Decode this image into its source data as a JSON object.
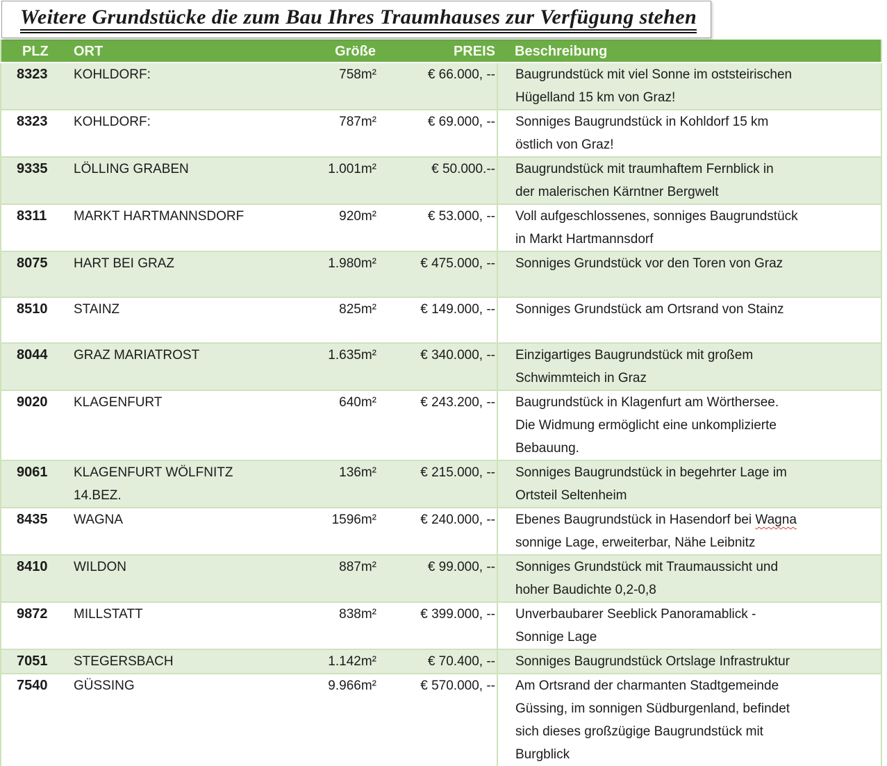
{
  "title": "Weitere Grundstücke die zum Bau Ihres Traumhauses zur Verfügung stehen",
  "table": {
    "columns": [
      "PLZ",
      "ORT",
      "Größe",
      "PREIS",
      "Beschreibung"
    ],
    "rows": [
      {
        "plz": "8323",
        "ort": "KOHLDORF:",
        "groesse": "758m²",
        "preis": "€ 66.000, --",
        "beschreibung": "Baugrundstück mit viel Sonne im oststeirischen\nHügelland 15 km von Graz!"
      },
      {
        "plz": "8323",
        "ort": "KOHLDORF:",
        "groesse": "787m²",
        "preis": "€ 69.000, --",
        "beschreibung": "Sonniges Baugrundstück in Kohldorf 15 km\nöstlich von Graz!"
      },
      {
        "plz": "9335",
        "ort": "LÖLLING GRABEN",
        "groesse": "1.001m²",
        "preis": "€ 50.000.--",
        "beschreibung": "Baugrundstück mit traumhaftem Fernblick in\nder malerischen Kärntner Bergwelt"
      },
      {
        "plz": "8311",
        "ort": "MARKT HARTMANNSDORF",
        "groesse": "920m²",
        "preis": "€ 53.000, --",
        "beschreibung": "Voll aufgeschlossenes, sonniges Baugrundstück\nin Markt Hartmannsdorf"
      },
      {
        "plz": "8075",
        "ort": "HART BEI GRAZ",
        "groesse": "1.980m²",
        "preis": "€ 475.000, --",
        "beschreibung": "Sonniges Grundstück vor den Toren von Graz"
      },
      {
        "plz": "8510",
        "ort": "STAINZ",
        "groesse": "825m²",
        "preis": "€ 149.000, --",
        "beschreibung": "Sonniges Grundstück am Ortsrand von Stainz"
      },
      {
        "plz": "8044",
        "ort": "GRAZ MARIATROST",
        "groesse": "1.635m²",
        "preis": "€ 340.000, --",
        "beschreibung": "Einzigartiges Baugrundstück mit großem\nSchwimmteich in Graz"
      },
      {
        "plz": "9020",
        "ort": "KLAGENFURT",
        "groesse": "640m²",
        "preis": "€ 243.200, --",
        "beschreibung": "Baugrundstück in Klagenfurt am Wörthersee.\nDie Widmung ermöglicht eine unkomplizierte\nBebauung."
      },
      {
        "plz": "9061",
        "ort": "KLAGENFURT WÖLFNITZ\n14.BEZ.",
        "groesse": "136m²",
        "preis": "€ 215.000, --",
        "beschreibung": "Sonniges Baugrundstück in begehrter Lage im\nOrtsteil Seltenheim"
      },
      {
        "plz": "8435",
        "ort": "WAGNA",
        "groesse": "1596m²",
        "preis": "€ 240.000, --",
        "beschreibung": "Ebenes Baugrundstück in Hasendorf bei Wagna\nsonnige Lage, erweiterbar, Nähe Leibnitz",
        "spellcheck_word": "Wagna"
      },
      {
        "plz": "8410",
        "ort": "WILDON",
        "groesse": "887m²",
        "preis": "€ 99.000, --",
        "beschreibung": "Sonniges Grundstück mit Traumaussicht und\nhoher Baudichte 0,2-0,8"
      },
      {
        "plz": "9872",
        "ort": "MILLSTATT",
        "groesse": "838m²",
        "preis": "€ 399.000, --",
        "beschreibung": "Unverbaubarer Seeblick Panoramablick -\nSonnige Lage"
      },
      {
        "plz": "7051",
        "ort": "STEGERSBACH",
        "groesse": "1.142m²",
        "preis": "€ 70.400, --",
        "beschreibung": "Sonniges Baugrundstück Ortslage Infrastruktur"
      },
      {
        "plz": "7540",
        "ort": "GÜSSING",
        "groesse": "9.966m²",
        "preis": "€ 570.000, --",
        "beschreibung": "Am Ortsrand der charmanten Stadtgemeinde\nGüssing, im sonnigen Südburgenland, befindet\nsich dieses großzügige Baugrundstück mit\nBurgblick"
      }
    ]
  },
  "colors": {
    "header_bg": "#6cad46",
    "row_alt_bg": "#e2eeda",
    "row_bg": "#ffffff",
    "grid": "#cfe2bc",
    "spellcheck_underline": "#d23f2f"
  }
}
